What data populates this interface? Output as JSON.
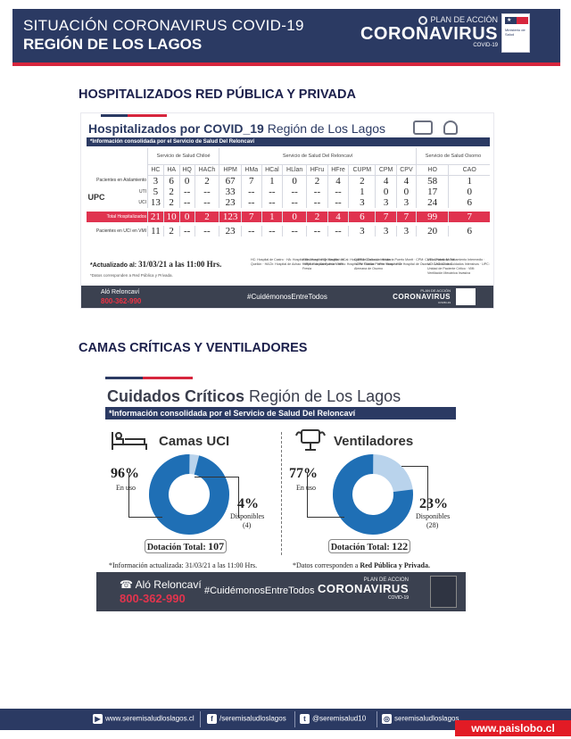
{
  "banner": {
    "line1": "SITUACIÓN CORONAVIRUS COVID-19",
    "line2": "REGIÓN DE LOS LAGOS",
    "logo_small": "PLAN DE ACCIÓN",
    "logo_big": "CORONAVIRUS",
    "logo_tiny": "COVID-19",
    "gov_text": "Ministerio de Salud"
  },
  "section1_title": "HOSPITALIZADOS RED PÚBLICA Y PRIVADA",
  "section2_title": "CAMAS CRÍTICAS Y VENTILADORES",
  "hosp": {
    "title_bold": "Hospitalizados por COVID_19",
    "title_rest": " Región de Los Lagos",
    "note": "*Información consolidada por el Servicio de Salud Del Reloncaví",
    "services": [
      "Servicio de Salud Chiloé",
      "Servicio de Salud Del Reloncaví",
      "Servicio de Salud Osorno"
    ],
    "columns": [
      "HC",
      "HA",
      "HQ",
      "HACh",
      "HPM",
      "HMa",
      "HCal",
      "HLlan",
      "HFru",
      "HFre",
      "CUPM",
      "CPM",
      "CPV",
      "HO",
      "CAO"
    ],
    "rows": [
      {
        "label": "Pacientes en Aislamiento",
        "group": "",
        "values": [
          "3",
          "6",
          "0",
          "2",
          "67",
          "7",
          "1",
          "0",
          "2",
          "4",
          "2",
          "4",
          "4",
          "58",
          "1"
        ]
      },
      {
        "label": "UTI",
        "group": "UPC",
        "values": [
          "5",
          "2",
          "--",
          "--",
          "33",
          "--",
          "--",
          "--",
          "--",
          "--",
          "1",
          "0",
          "0",
          "17",
          "0"
        ]
      },
      {
        "label": "UCI",
        "group": "",
        "values": [
          "13",
          "2",
          "--",
          "--",
          "23",
          "--",
          "--",
          "--",
          "--",
          "--",
          "3",
          "3",
          "3",
          "24",
          "6"
        ]
      },
      {
        "label": "Total Hospitalizados",
        "group": "",
        "values": [
          "21",
          "10",
          "0",
          "2",
          "123",
          "7",
          "1",
          "0",
          "2",
          "4",
          "6",
          "7",
          "7",
          "99",
          "7"
        ]
      },
      {
        "label": "Pacientes en UCI en VMI",
        "group": "",
        "values": [
          "11",
          "2",
          "--",
          "--",
          "23",
          "--",
          "--",
          "--",
          "--",
          "--",
          "3",
          "3",
          "3",
          "20",
          "6"
        ]
      }
    ],
    "updated_label": "*Actualizado al: ",
    "updated_value": "31/03/21 a las 11:00 Hrs.",
    "footnote": "*Datos corresponden a Red Pública y Privada.",
    "legend": [
      "HC: Hospital de Castro · HA: Hospital de Ancud · HQ: Hospital de Quellón · HACh: Hospital de Achao · HPM: Hospital Puerto Montt",
      "HMa: Hospital de Maullín · HCal: Hospital de Calbuco · HLlan: Hospital de Llanquihue · HFru: Hospital de Frutillar · HFre: Hospital de Fresia",
      "CUPM: Clínica Universitaria Puerto Montt · CPM: Clínica Puerto Montt · CPV: Clínica Puerto Varas · HO: Hospital de Osorno · CAO: Clínica Alemana de Osorno",
      "UTI: Unidad de Tratamiento Intermedio · UCI: Unidad de Cuidados Intensivos · UPC: Unidad de Paciente Crítico · VMI: Ventilación Mecánica Invasiva"
    ],
    "band_alo": "Aló Reloncaví",
    "band_phone": "800-362-990",
    "band_tag": "#CuidémonosEntreTodos",
    "band_logo_small": "PLAN DE ACCIÓN",
    "band_logo_big": "CORONAVIRUS",
    "band_logo_tiny": "COVID-19"
  },
  "critical": {
    "title_bold": "Cuidados Críticos",
    "title_rest": " Región de Los Lagos",
    "note": "*Información consolidada por el Servicio de Salud Del Reloncaví",
    "camas": {
      "heading": "Camas UCI",
      "used_pct": "96%",
      "used_label": "En uso",
      "avail_pct": "4%",
      "avail_label": "Disponibles",
      "avail_count": "(4)",
      "total_label": "Dotación Total: ",
      "total_value": "107",
      "used_fraction": 0.96
    },
    "vent": {
      "heading": "Ventiladores",
      "used_pct": "77%",
      "used_label": "En uso",
      "avail_pct": "23%",
      "avail_label": "Disponibles",
      "avail_count": "(28)",
      "total_label": "Dotación Total: ",
      "total_value": "122",
      "used_fraction": 0.77
    },
    "updated": "*Información actualizada: 31/03/21 a las 11:00 Hrs.",
    "data_note_pre": "*Datos corresponden a ",
    "data_note_bold": "Red Pública y Privada.",
    "band_alo": "Aló Reloncaví",
    "band_phone": "800-362-990",
    "band_tag": "#CuidémonosEntreTodos",
    "band_logo_small": "PLAN DE ACCIÓN",
    "band_logo_big": "CORONAVIRUS",
    "band_logo_tiny": "COVID-19",
    "colors": {
      "used": "#1f6fb5",
      "available": "#b9d3ec"
    }
  },
  "footer": {
    "web": "www.seremisaludloslagos.cl",
    "facebook": "/seremisaludloslagos",
    "twitter": "@seremisalud10",
    "instagram": "seremisaludloslagos",
    "facebook_glyph": "f",
    "twitter_glyph": "t",
    "instagram_glyph": "◎",
    "web_glyph": "▶"
  },
  "watermark": "www.paislobo.cl",
  "colors": {
    "navy": "#2b3a63",
    "red": "#d7263d"
  }
}
